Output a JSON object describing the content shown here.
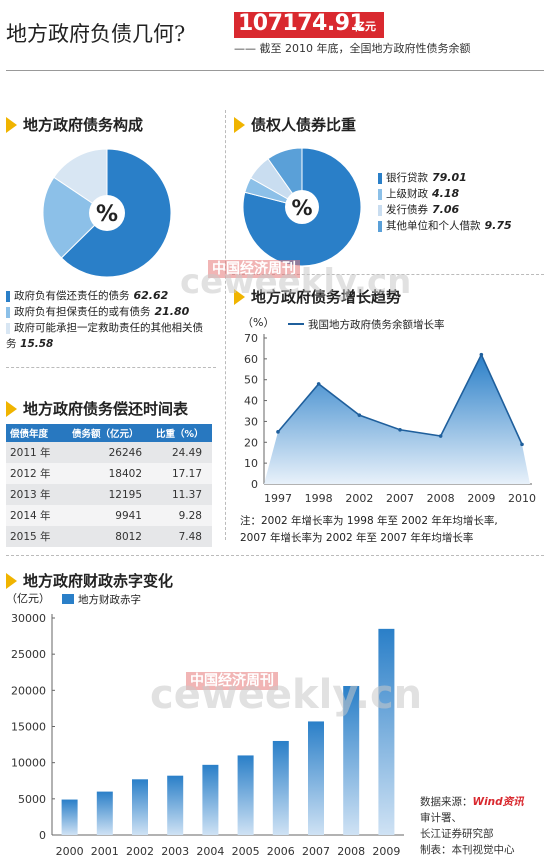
{
  "header": {
    "title": "地方政府负债几何?",
    "hero_value": "107174.91",
    "hero_unit": "亿元",
    "hero_caption": "—— 截至 2010 年底，全国地方政府性债务余额"
  },
  "composition": {
    "heading": "地方政府债务构成",
    "pie_center": "%",
    "items": [
      {
        "label": "政府负有偿还责任的债务",
        "value": "62.62",
        "color": "#2a7fc8"
      },
      {
        "label": "政府负有担保责任的或有债务",
        "value": "21.80",
        "color": "#8cc0e8"
      },
      {
        "label": "政府可能承担一定救助责任的其他相关债务",
        "value": "15.58",
        "color": "#d8e6f3"
      }
    ]
  },
  "creditors": {
    "heading": "债权人债券比重",
    "pie_center": "%",
    "items": [
      {
        "label": "银行贷款",
        "value": "79.01",
        "color": "#2a7fc8"
      },
      {
        "label": "上级财政",
        "value": "4.18",
        "color": "#8cc0e8"
      },
      {
        "label": "发行债券",
        "value": "7.06",
        "color": "#c9ddf0"
      },
      {
        "label": "其他单位和个人借款",
        "value": "9.75",
        "color": "#5aa0d8"
      }
    ]
  },
  "maturity": {
    "heading": "地方政府债务偿还时间表",
    "columns": [
      "偿债年度",
      "债务额（亿元）",
      "比重（%）"
    ],
    "rows": [
      [
        "2011 年",
        "26246",
        "24.49"
      ],
      [
        "2012 年",
        "18402",
        "17.17"
      ],
      [
        "2013 年",
        "12195",
        "11.37"
      ],
      [
        "2014 年",
        "9941",
        "9.28"
      ],
      [
        "2015 年",
        "8012",
        "7.48"
      ]
    ]
  },
  "growth": {
    "heading": "地方政府债务增长趋势",
    "note_line1": "注：2002 年增长率为 1998 年至 2002 年年均增长率,",
    "note_line2": "2007 年增长率为 2002 年至 2007 年年均增长率"
  },
  "deficit": {
    "heading": "地方政府财政赤字变化"
  },
  "source": {
    "line1": "数据来源：",
    "brand": "Wind资讯",
    "line2": "审计署、",
    "line3": "长江证券研究部",
    "line4": "制表：本刊视觉中心"
  },
  "watermark": {
    "cn": "中国经济周刊",
    "en": "ceweekly.cn"
  },
  "chart_data": [
    {
      "type": "pie",
      "title": "地方政府债务构成",
      "categories": [
        "政府负有偿还责任的债务",
        "政府负有担保责任的或有债务",
        "政府可能承担一定救助责任的其他相关债务"
      ],
      "values": [
        62.62,
        21.8,
        15.58
      ]
    },
    {
      "type": "pie",
      "title": "债权人债券比重",
      "categories": [
        "银行贷款",
        "上级财政",
        "发行债券",
        "其他单位和个人借款"
      ],
      "values": [
        79.01,
        4.18,
        7.06,
        9.75
      ]
    },
    {
      "type": "area",
      "title": "地方政府债务增长趋势",
      "ylabel": "（%）",
      "x": [
        "1997",
        "1998",
        "2002",
        "2007",
        "2008",
        "2009",
        "2010"
      ],
      "series": [
        {
          "name": "我国地方政府债务余额增长率",
          "values": [
            25,
            48,
            33,
            26,
            23,
            62,
            19
          ]
        }
      ],
      "ylim": [
        0,
        70
      ],
      "yticks": [
        0,
        10,
        20,
        30,
        40,
        50,
        60,
        70
      ],
      "color": "#2a7fc8"
    },
    {
      "type": "bar",
      "title": "地方政府财政赤字变化",
      "ylabel": "（亿元）",
      "categories": [
        "2000",
        "2001",
        "2002",
        "2003",
        "2004",
        "2005",
        "2006",
        "2007",
        "2008",
        "2009"
      ],
      "series": [
        {
          "name": "地方财政赤字",
          "values": [
            4900,
            6000,
            7700,
            8200,
            9700,
            11000,
            13000,
            15700,
            20600,
            28500
          ]
        }
      ],
      "ylim": [
        0,
        30000
      ],
      "yticks": [
        0,
        5000,
        10000,
        15000,
        20000,
        25000,
        30000
      ],
      "color": "#2a7fc8"
    }
  ]
}
